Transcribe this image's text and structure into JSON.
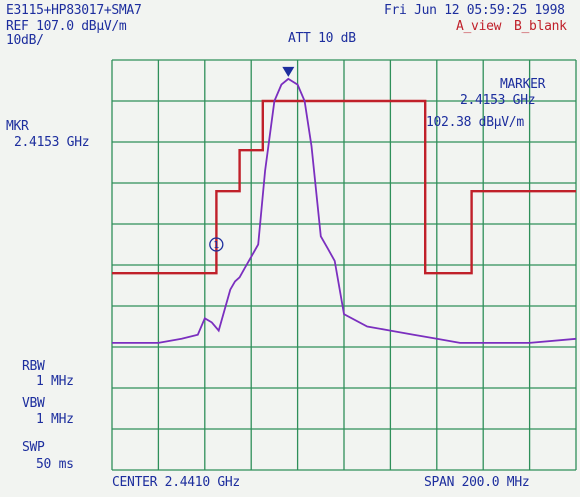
{
  "header": {
    "instrument": "E3115+HP83017+SMA7",
    "datetime": "Fri Jun 12 05:59:25 1998",
    "ref_level": "REF 107.0 dBµV/m",
    "attenuation": "ATT 10 dB",
    "trace_a": "A_view",
    "trace_b": "B_blank",
    "scale": "10dB/"
  },
  "marker": {
    "title": "MARKER",
    "freq": "2.4153 GHz",
    "level": "102.38 dBµV/m"
  },
  "mkr": {
    "label": "MKR",
    "freq": "2.4153 GHz"
  },
  "settings": {
    "rbw_label": "RBW",
    "rbw_value": "1 MHz",
    "vbw_label": "VBW",
    "vbw_value": "1 MHz",
    "swp_label": "SWP",
    "swp_value": "50 ms"
  },
  "footer": {
    "center": "CENTER 2.4410 GHz",
    "span": "SPAN 200.0 MHz"
  },
  "annotation": {
    "marker_index": "1"
  },
  "colors": {
    "grid": "#2f8f5a",
    "trace": "#7b2fbf",
    "limit": "#c0202a",
    "text": "#1d2e9e",
    "background": "#f2f4f1"
  },
  "chart_data": {
    "type": "line",
    "x_unit": "GHz",
    "y_unit": "dBµV/m",
    "xlim": [
      2.341,
      2.541
    ],
    "ylim": [
      7.0,
      107.0
    ],
    "series": [
      {
        "role": "spectrum-trace",
        "x": [
          2.341,
          2.361,
          2.371,
          2.378,
          2.381,
          2.384,
          2.387,
          2.392,
          2.394,
          2.396,
          2.398,
          2.401,
          2.404,
          2.407,
          2.411,
          2.414,
          2.417,
          2.421,
          2.424,
          2.427,
          2.431,
          2.434,
          2.437,
          2.441,
          2.451,
          2.461,
          2.471,
          2.481,
          2.491,
          2.501,
          2.521,
          2.541
        ],
        "y": [
          38,
          38,
          39,
          40,
          44,
          43,
          41,
          51,
          53,
          54,
          56,
          59,
          62,
          80,
          97,
          101,
          102.4,
          101,
          97,
          86,
          64,
          61,
          58,
          45,
          42,
          41,
          40,
          39,
          38,
          38,
          38,
          39
        ]
      },
      {
        "role": "limit-line",
        "x": [
          2.341,
          2.386,
          2.386,
          2.396,
          2.396,
          2.406,
          2.406,
          2.476,
          2.476,
          2.496,
          2.496,
          2.541
        ],
        "y": [
          55,
          55,
          75,
          75,
          85,
          85,
          97,
          97,
          55,
          55,
          75,
          75
        ]
      }
    ]
  }
}
